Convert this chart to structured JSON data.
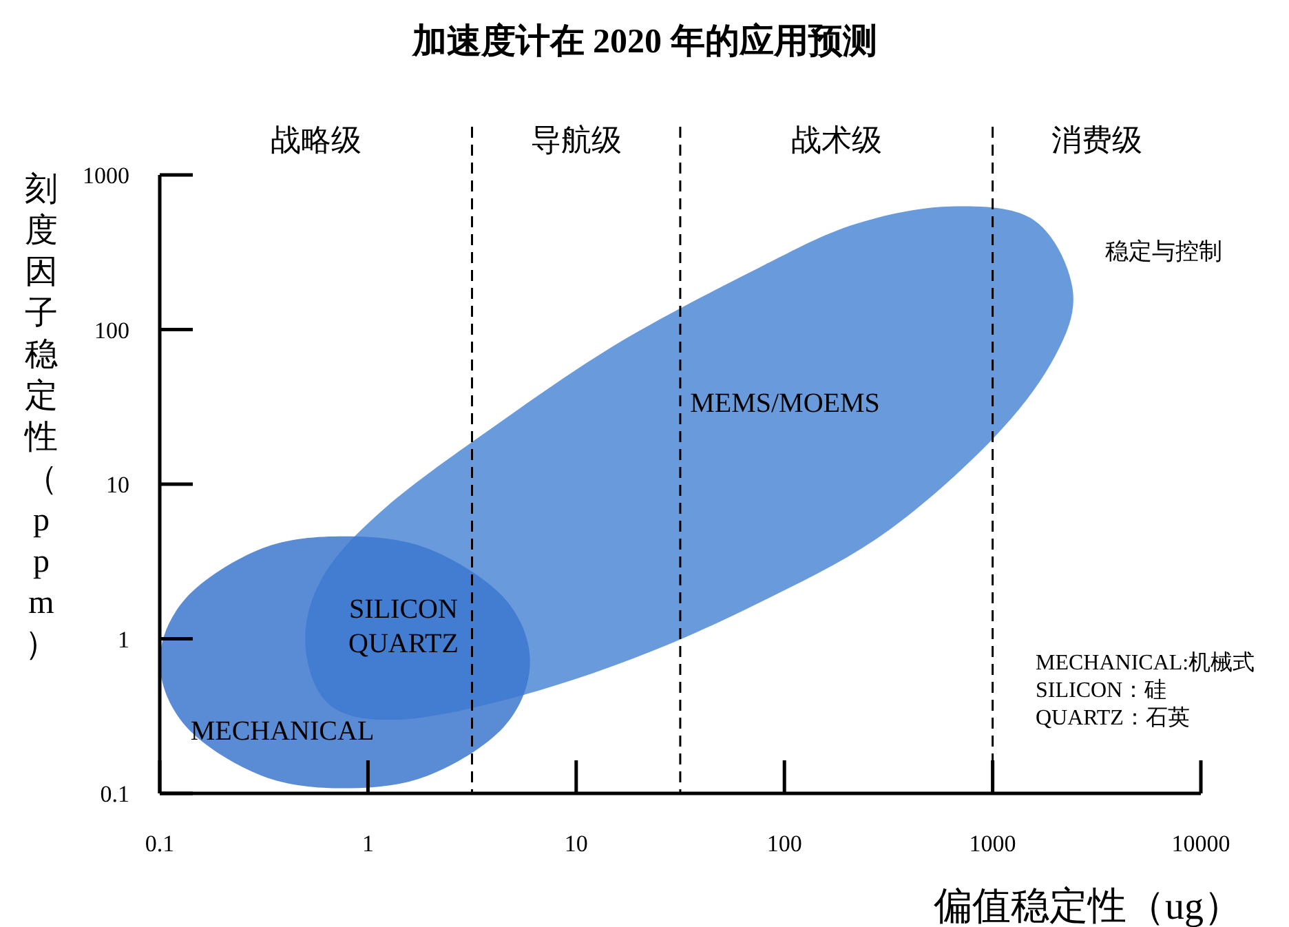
{
  "chart_data": {
    "type": "area",
    "title": "加速度计在 2020 年的应用预测",
    "xlabel": "偏值稳定性（ug）",
    "ylabel": "刻度因子稳定性（ppm）",
    "log": "xy",
    "xlim": [
      0.1,
      10000
    ],
    "ylim": [
      0.1,
      1000
    ],
    "xticks": [
      0.1,
      1,
      10,
      100,
      1000,
      10000
    ],
    "yticks": [
      0.1,
      1,
      10,
      100,
      1000
    ],
    "grid": false,
    "series": [
      {
        "name": "MEMS/MOEMS",
        "color": "#4f89d6",
        "x": [
          632,
          1580,
          2420,
          1990,
          1000,
          295,
          75,
          19,
          4.8,
          1.42,
          0.66,
          0.5,
          0.61,
          1.22,
          4.1,
          16,
          75,
          218
        ],
        "values": [
          625,
          510,
          184,
          67,
          19.6,
          4.7,
          1.7,
          0.75,
          0.41,
          0.3,
          0.37,
          0.92,
          2.55,
          7.1,
          24,
          82,
          250,
          480
        ]
      },
      {
        "name": "MECHANICAL",
        "color": "#3d78cf",
        "x": [
          6.0,
          4.5,
          1.93,
          0.77,
          0.31,
          0.134,
          0.1,
          0.134,
          0.31,
          0.77,
          1.93,
          4.5
        ],
        "values": [
          0.71,
          0.27,
          0.13,
          0.108,
          0.13,
          0.27,
          0.71,
          1.84,
          3.84,
          4.6,
          3.84,
          1.84
        ]
      }
    ],
    "ref_lines": [
      {
        "axis": "x",
        "value": 3.16,
        "line_style": "dashed"
      },
      {
        "axis": "x",
        "value": 31.6,
        "line_style": "dashed"
      },
      {
        "axis": "x",
        "value": 1000,
        "line_style": "dashed"
      }
    ],
    "annotations": [
      "战略级",
      "导航级",
      "战术级",
      "消费级",
      "SILICON\nQUARTZ",
      "稳定与控制",
      "MECHANICAL:机械式\nSILICON：硅\nQUARTZ：石英"
    ]
  }
}
